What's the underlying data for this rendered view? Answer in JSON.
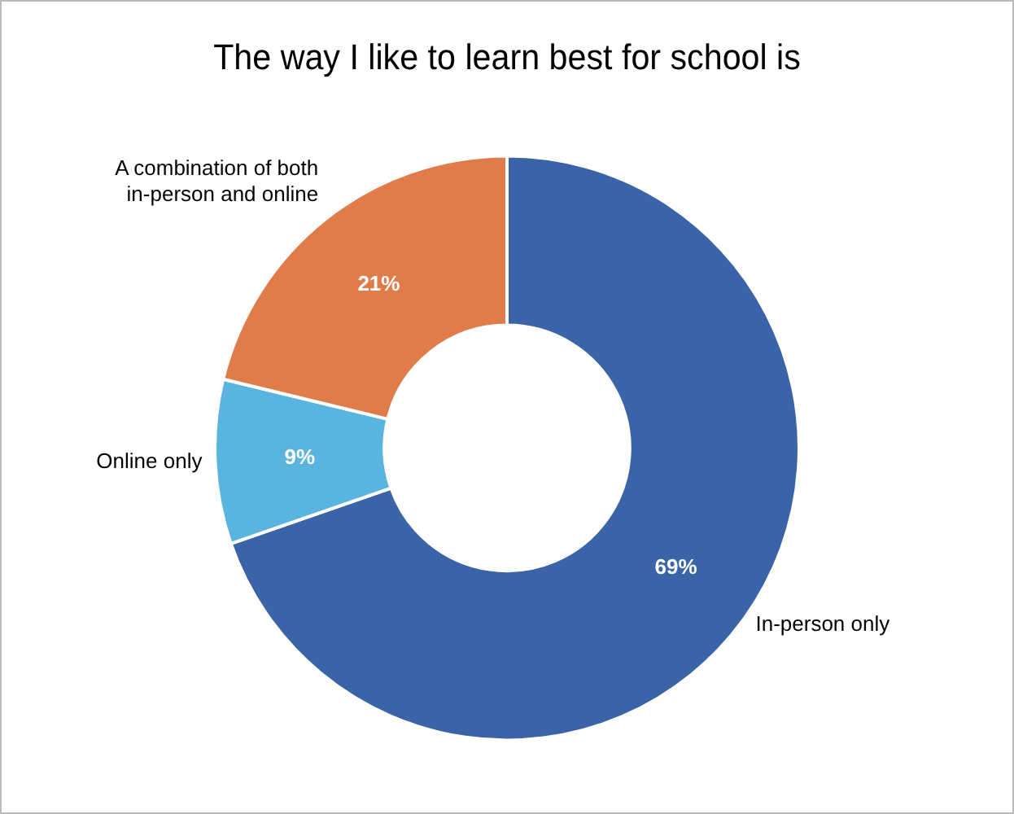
{
  "chart_data": {
    "type": "donut",
    "title": "The way I like to learn best for school is",
    "categories": [
      "In-person only",
      "Online only",
      "A combination of both in-person and online"
    ],
    "values": [
      69,
      9,
      21
    ],
    "value_labels": [
      "69%",
      "9%",
      "21%"
    ],
    "colors": [
      "#3a63a8",
      "#5ab4e0",
      "#e07b4a"
    ],
    "legend": false
  }
}
